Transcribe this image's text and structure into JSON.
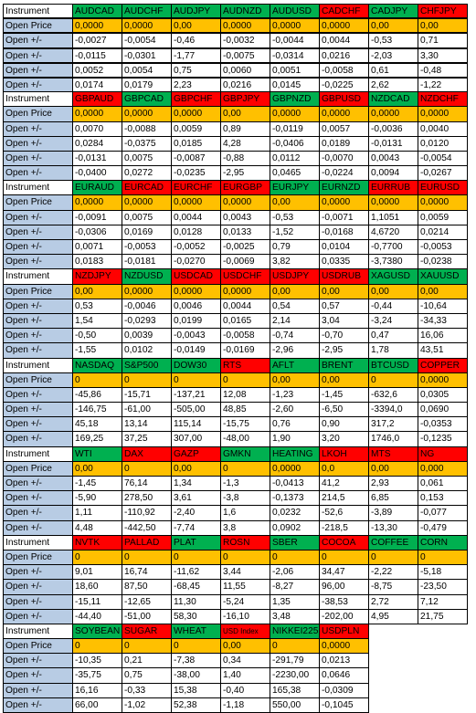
{
  "colors": {
    "up": "#00b050",
    "down": "#ff0000",
    "price": "#ffc000",
    "label": "#b8cce4"
  },
  "blocks": [
    {
      "header": "Instrument",
      "instruments": [
        {
          "name": "AUDCAD",
          "color": "green"
        },
        {
          "name": "AUDCHF",
          "color": "green"
        },
        {
          "name": "AUDJPY",
          "color": "green"
        },
        {
          "name": "AUDNZD",
          "color": "green"
        },
        {
          "name": "AUDUSD",
          "color": "green"
        },
        {
          "name": "CADCHF",
          "color": "red"
        },
        {
          "name": "CADJPY",
          "color": "green"
        },
        {
          "name": "CHFJPY",
          "color": "red"
        }
      ],
      "rows": [
        {
          "label": "Open Price",
          "values": [
            "0,0000",
            "0,0000",
            "0,00",
            "0,0000",
            "0,0000",
            "0,0000",
            "0,00",
            "0,00"
          ]
        },
        {
          "label": "Open +/-",
          "values": [
            "-0,0027",
            "-0,0054",
            "-0,46",
            "-0,0032",
            "-0,0044",
            "0,0044",
            "-0,53",
            "0,71"
          ]
        },
        {
          "label": "Open +/-",
          "values": [
            "-0,0115",
            "-0,0301",
            "-1,77",
            "-0,0075",
            "-0,0314",
            "0,0216",
            "-2,03",
            "3,30"
          ]
        },
        {
          "label": "Open +/-",
          "values": [
            "0,0052",
            "0,0054",
            "0,75",
            "0,0060",
            "0,0051",
            "-0,0058",
            "0,61",
            "-0,48"
          ]
        },
        {
          "label": "Open +/-",
          "values": [
            "0,0174",
            "0,0179",
            "2,23",
            "0,0216",
            "0,0145",
            "-0,0225",
            "2,62",
            "-1,22"
          ]
        }
      ]
    },
    {
      "header": "Instrument",
      "instruments": [
        {
          "name": "GBPAUD",
          "color": "red"
        },
        {
          "name": "GBPCAD",
          "color": "green"
        },
        {
          "name": "GBPCHF",
          "color": "red"
        },
        {
          "name": "GBPJPY",
          "color": "red"
        },
        {
          "name": "GBPNZD",
          "color": "green"
        },
        {
          "name": "GBPUSD",
          "color": "red"
        },
        {
          "name": "NZDCAD",
          "color": "green"
        },
        {
          "name": "NZDCHF",
          "color": "red"
        }
      ],
      "rows": [
        {
          "label": "Open Price",
          "values": [
            "0,0000",
            "0,0000",
            "0,0000",
            "0,00",
            "0,0000",
            "0,0000",
            "0,0000",
            "0,0000"
          ]
        },
        {
          "label": "Open +/-",
          "values": [
            "0,0070",
            "-0,0088",
            "0,0059",
            "0,89",
            "-0,0119",
            "0,0057",
            "-0,0036",
            "0,0040"
          ]
        },
        {
          "label": "Open +/-",
          "values": [
            "0,0284",
            "-0,0375",
            "0,0185",
            "4,28",
            "-0,0406",
            "0,0189",
            "-0,0131",
            "0,0120"
          ]
        },
        {
          "label": "Open +/-",
          "values": [
            "-0,0131",
            "0,0075",
            "-0,0087",
            "-0,88",
            "0,0112",
            "-0,0070",
            "0,0043",
            "-0,0054"
          ]
        },
        {
          "label": "Open +/-",
          "values": [
            "-0,0400",
            "0,0272",
            "-0,0235",
            "-2,95",
            "0,0465",
            "-0,0224",
            "0,0094",
            "-0,0267"
          ]
        }
      ]
    },
    {
      "header": "Instrument",
      "instruments": [
        {
          "name": "EURAUD",
          "color": "green"
        },
        {
          "name": "EURCAD",
          "color": "red"
        },
        {
          "name": "EURCHF",
          "color": "red"
        },
        {
          "name": "EURGBP",
          "color": "red"
        },
        {
          "name": "EURJPY",
          "color": "green"
        },
        {
          "name": "EURNZD",
          "color": "green"
        },
        {
          "name": "EURRUB",
          "color": "red"
        },
        {
          "name": "EURUSD",
          "color": "red"
        }
      ],
      "rows": [
        {
          "label": "Open Price",
          "values": [
            "0,0000",
            "0,0000",
            "0,0000",
            "0,0000",
            "0,00",
            "0,0000",
            "0,0000",
            "0,0000"
          ]
        },
        {
          "label": "Open +/-",
          "values": [
            "-0,0091",
            "0,0075",
            "0,0044",
            "0,0043",
            "-0,53",
            "-0,0071",
            "1,1051",
            "0,0059"
          ]
        },
        {
          "label": "Open +/-",
          "values": [
            "-0,0306",
            "0,0169",
            "0,0128",
            "0,0133",
            "-1,52",
            "-0,0168",
            "4,6720",
            "0,0214"
          ]
        },
        {
          "label": "Open +/-",
          "values": [
            "0,0071",
            "-0,0053",
            "-0,0052",
            "-0,0025",
            "0,79",
            "0,0104",
            "-0,7700",
            "-0,0053"
          ]
        },
        {
          "label": "Open +/-",
          "values": [
            "0,0183",
            "-0,0181",
            "-0,0270",
            "-0,0069",
            "3,82",
            "0,0335",
            "-3,7380",
            "-0,0238"
          ]
        }
      ]
    },
    {
      "header": "Instrument",
      "instruments": [
        {
          "name": "NZDJPY",
          "color": "red"
        },
        {
          "name": "NZDUSD",
          "color": "green"
        },
        {
          "name": "USDCAD",
          "color": "red"
        },
        {
          "name": "USDCHF",
          "color": "red"
        },
        {
          "name": "USDJPY",
          "color": "red"
        },
        {
          "name": "USDRUB",
          "color": "red"
        },
        {
          "name": "XAGUSD",
          "color": "green"
        },
        {
          "name": "XAUUSD",
          "color": "green"
        }
      ],
      "rows": [
        {
          "label": "Open Price",
          "values": [
            "0,00",
            "0,0000",
            "0,0000",
            "0,0000",
            "0,00",
            "0,00",
            "0,00",
            "0,00"
          ]
        },
        {
          "label": "Open +/-",
          "values": [
            "0,53",
            "-0,0046",
            "0,0046",
            "0,0044",
            "0,54",
            "0,57",
            "-0,44",
            "-10,64"
          ]
        },
        {
          "label": "Open +/-",
          "values": [
            "1,54",
            "-0,0293",
            "0,0199",
            "0,0165",
            "2,14",
            "3,04",
            "-3,24",
            "-34,33"
          ]
        },
        {
          "label": "Open +/-",
          "values": [
            "-0,50",
            "0,0039",
            "-0,0043",
            "-0,0058",
            "-0,74",
            "-0,70",
            "0,47",
            "16,06"
          ]
        },
        {
          "label": "Open +/-",
          "values": [
            "-1,55",
            "0,0102",
            "-0,0149",
            "-0,0169",
            "-2,96",
            "-2,95",
            "1,78",
            "43,51"
          ]
        }
      ]
    },
    {
      "header": "Instrument",
      "instruments": [
        {
          "name": "NASDAQ",
          "color": "green"
        },
        {
          "name": "S&P500",
          "color": "green"
        },
        {
          "name": "DOW30",
          "color": "green"
        },
        {
          "name": "RTS",
          "color": "red"
        },
        {
          "name": "AFLT",
          "color": "green"
        },
        {
          "name": "BRENT",
          "color": "green"
        },
        {
          "name": "BTCUSD",
          "color": "green"
        },
        {
          "name": "COPPER",
          "color": "red"
        }
      ],
      "rows": [
        {
          "label": "Open Price",
          "values": [
            "0",
            "0",
            "0",
            "0",
            "0,00",
            "0,00",
            "0",
            "0,0000"
          ]
        },
        {
          "label": "Open +/-",
          "values": [
            "-45,86",
            "-15,71",
            "-137,21",
            "12,08",
            "-1,23",
            "-1,45",
            "-632,6",
            "0,0305"
          ]
        },
        {
          "label": "Open +/-",
          "values": [
            "-146,75",
            "-61,00",
            "-505,00",
            "48,85",
            "-2,60",
            "-6,50",
            "-3394,0",
            "0,0690"
          ]
        },
        {
          "label": "Open +/-",
          "values": [
            "45,18",
            "13,14",
            "115,14",
            "-15,75",
            "0,76",
            "0,90",
            "317,2",
            "-0,0353"
          ]
        },
        {
          "label": "Open +/-",
          "values": [
            "169,25",
            "37,25",
            "307,00",
            "-48,00",
            "1,90",
            "3,20",
            "1746,0",
            "-0,1235"
          ]
        }
      ]
    },
    {
      "header": "Instrument",
      "instruments": [
        {
          "name": "WTI",
          "color": "green"
        },
        {
          "name": "DAX",
          "color": "red"
        },
        {
          "name": "GAZP",
          "color": "red"
        },
        {
          "name": "GMKN",
          "color": "green"
        },
        {
          "name": "HEATING",
          "color": "green"
        },
        {
          "name": "LKOH",
          "color": "red"
        },
        {
          "name": "MTS",
          "color": "red"
        },
        {
          "name": "NG",
          "color": "red"
        }
      ],
      "rows": [
        {
          "label": "Open Price",
          "values": [
            "0,00",
            "0",
            "0,00",
            "0",
            "0,0000",
            "0,0",
            "0,00",
            "0,000"
          ]
        },
        {
          "label": "Open +/-",
          "values": [
            "-1,45",
            "76,14",
            "1,34",
            "-1,3",
            "-0,0413",
            "41,2",
            "2,93",
            "0,061"
          ]
        },
        {
          "label": "Open +/-",
          "values": [
            "-5,90",
            "278,50",
            "3,61",
            "-3,8",
            "-0,1373",
            "214,5",
            "6,85",
            "0,153"
          ]
        },
        {
          "label": "Open +/-",
          "values": [
            "1,11",
            "-110,92",
            "-2,40",
            "1,6",
            "0,0232",
            "-52,6",
            "-3,89",
            "-0,077"
          ]
        },
        {
          "label": "Open +/-",
          "values": [
            "4,48",
            "-442,50",
            "-7,74",
            "3,8",
            "0,0902",
            "-218,5",
            "-13,30",
            "-0,479"
          ]
        }
      ]
    },
    {
      "header": "Instrument",
      "instruments": [
        {
          "name": "NVTK",
          "color": "red"
        },
        {
          "name": "PALLAD",
          "color": "red"
        },
        {
          "name": "PLAT",
          "color": "green"
        },
        {
          "name": "ROSN",
          "color": "red"
        },
        {
          "name": "SBER",
          "color": "green"
        },
        {
          "name": "COCOA",
          "color": "red"
        },
        {
          "name": "COFFEE",
          "color": "green"
        },
        {
          "name": "CORN",
          "color": "green"
        }
      ],
      "rows": [
        {
          "label": "Open Price",
          "values": [
            "0",
            "0",
            "0",
            "0",
            "0",
            "0",
            "0",
            "0"
          ]
        },
        {
          "label": "Open +/-",
          "values": [
            "9,01",
            "16,74",
            "-11,62",
            "3,44",
            "-2,06",
            "34,47",
            "-2,22",
            "-5,18"
          ]
        },
        {
          "label": "Open +/-",
          "values": [
            "18,60",
            "87,50",
            "-68,45",
            "11,55",
            "-8,27",
            "96,00",
            "-8,75",
            "-23,50"
          ]
        },
        {
          "label": "Open +/-",
          "values": [
            "-15,11",
            "-12,65",
            "11,30",
            "-5,24",
            "1,35",
            "-38,53",
            "2,72",
            "7,12"
          ]
        },
        {
          "label": "Open +/-",
          "values": [
            "-44,40",
            "-51,00",
            "58,30",
            "-16,10",
            "3,48",
            "-202,00",
            "4,95",
            "21,75"
          ]
        }
      ]
    },
    {
      "header": "Instrument",
      "instruments": [
        {
          "name": "SOYBEAN",
          "color": "green"
        },
        {
          "name": "SUGAR",
          "color": "red"
        },
        {
          "name": "WHEAT",
          "color": "green"
        },
        {
          "name": "USD Index",
          "color": "red"
        },
        {
          "name": "NIKKEI225",
          "color": "green"
        },
        {
          "name": "USDPLN",
          "color": "red"
        },
        {
          "name": "",
          "color": "none"
        },
        {
          "name": "",
          "color": "none"
        }
      ],
      "rows": [
        {
          "label": "Open Price",
          "values": [
            "0",
            "0",
            "0",
            "0,00",
            "0",
            "0,0000",
            "",
            ""
          ]
        },
        {
          "label": "Open +/-",
          "values": [
            "-10,35",
            "0,21",
            "-7,38",
            "0,34",
            "-291,79",
            "0,0213",
            "",
            ""
          ]
        },
        {
          "label": "Open +/-",
          "values": [
            "-35,75",
            "0,75",
            "-38,00",
            "1,40",
            "-2230,00",
            "0,0646",
            "",
            ""
          ]
        },
        {
          "label": "Open +/-",
          "values": [
            "16,16",
            "-0,33",
            "15,38",
            "-0,40",
            "165,38",
            "-0,0309",
            "",
            ""
          ]
        },
        {
          "label": "Open +/-",
          "values": [
            "66,00",
            "-1,02",
            "52,38",
            "-1,18",
            "550,00",
            "-0,1045",
            "",
            ""
          ]
        }
      ]
    }
  ]
}
